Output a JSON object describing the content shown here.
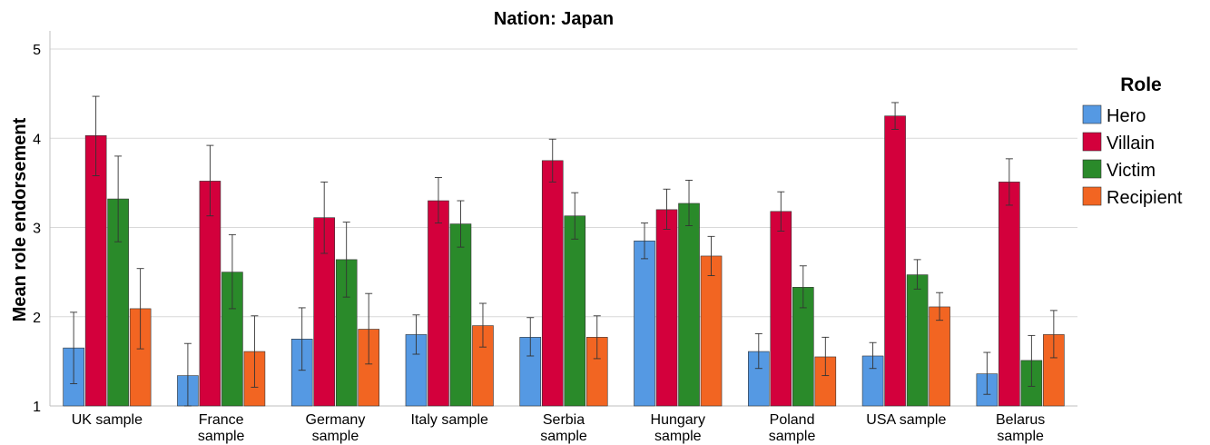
{
  "chart_data": {
    "type": "bar",
    "title": "Nation: Japan",
    "xlabel": "",
    "ylabel": "Mean role endorsement",
    "ylim": [
      1,
      5.2
    ],
    "yticks": [
      1,
      2,
      3,
      4,
      5
    ],
    "grid": "horizontal",
    "legend": {
      "title": "Role",
      "placement": "right"
    },
    "categories": [
      [
        "UK sample"
      ],
      [
        "France",
        "sample"
      ],
      [
        "Germany",
        "sample"
      ],
      [
        "Italy sample"
      ],
      [
        "Serbia",
        "sample"
      ],
      [
        "Hungary",
        "sample"
      ],
      [
        "Poland",
        "sample"
      ],
      [
        "USA sample"
      ],
      [
        "Belarus",
        "sample"
      ]
    ],
    "series": [
      {
        "name": "Hero",
        "color": "#5599e3",
        "values": [
          1.65,
          1.34,
          1.75,
          1.8,
          1.77,
          2.85,
          1.61,
          1.56,
          1.36
        ],
        "error_low": [
          1.25,
          1.0,
          1.4,
          1.58,
          1.56,
          2.65,
          1.42,
          1.42,
          1.13
        ],
        "error_high": [
          2.05,
          1.7,
          2.1,
          2.02,
          1.99,
          3.05,
          1.81,
          1.71,
          1.6
        ]
      },
      {
        "name": "Villain",
        "color": "#d3003c",
        "values": [
          4.03,
          3.52,
          3.11,
          3.3,
          3.75,
          3.2,
          3.18,
          4.25,
          3.51
        ],
        "error_low": [
          3.58,
          3.13,
          2.71,
          3.05,
          3.51,
          2.98,
          2.96,
          4.1,
          3.25
        ],
        "error_high": [
          4.47,
          3.92,
          3.51,
          3.56,
          3.99,
          3.43,
          3.4,
          4.4,
          3.77
        ]
      },
      {
        "name": "Victim",
        "color": "#2a8a2a",
        "values": [
          3.32,
          2.5,
          2.64,
          3.04,
          3.13,
          3.27,
          2.33,
          2.47,
          1.51
        ],
        "error_low": [
          2.84,
          2.09,
          2.22,
          2.78,
          2.87,
          3.02,
          2.1,
          2.31,
          1.22
        ],
        "error_high": [
          3.8,
          2.92,
          3.06,
          3.3,
          3.39,
          3.53,
          2.57,
          2.64,
          1.79
        ]
      },
      {
        "name": "Recipient",
        "color": "#f26522",
        "values": [
          2.09,
          1.61,
          1.86,
          1.9,
          1.77,
          2.68,
          1.55,
          2.11,
          1.8
        ],
        "error_low": [
          1.64,
          1.21,
          1.47,
          1.66,
          1.53,
          2.46,
          1.34,
          1.96,
          1.54
        ],
        "error_high": [
          2.54,
          2.01,
          2.26,
          2.15,
          2.01,
          2.9,
          1.77,
          2.27,
          2.07
        ]
      }
    ]
  }
}
